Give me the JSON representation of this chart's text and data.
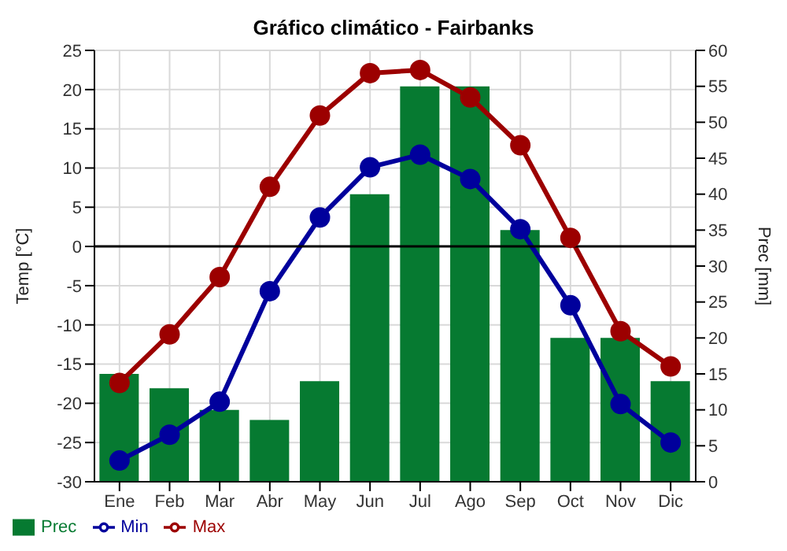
{
  "chart_data": {
    "type": "bar",
    "title": "Gráfico climático - Fairbanks",
    "ylabel": "Temp [°C]",
    "y2label": "Prec [mm]",
    "categories": [
      "Ene",
      "Feb",
      "Mar",
      "Abr",
      "May",
      "Jun",
      "Jul",
      "Ago",
      "Sep",
      "Oct",
      "Nov",
      "Dic"
    ],
    "series": [
      {
        "name": "Prec",
        "axis": "y2",
        "color": "#067a31",
        "values": [
          15,
          13,
          10,
          8.6,
          14,
          40,
          55,
          55,
          35,
          20,
          20,
          14
        ]
      },
      {
        "name": "Min",
        "type": "line",
        "color": "#00009c",
        "values": [
          -27.3,
          -24,
          -19.8,
          -5.7,
          3.7,
          10.1,
          11.7,
          8.6,
          2.2,
          -7.5,
          -20.1,
          -25
        ]
      },
      {
        "name": "Max",
        "type": "line",
        "color": "#9c0000",
        "values": [
          -17.4,
          -11.2,
          -3.9,
          7.6,
          16.7,
          22.1,
          22.5,
          19,
          12.9,
          1.1,
          -10.8,
          -15.3
        ]
      }
    ],
    "ylim": [
      -30,
      25
    ],
    "yticks": [
      -30,
      -25,
      -20,
      -15,
      -10,
      -5,
      0,
      5,
      10,
      15,
      20,
      25
    ],
    "y2lim": [
      0,
      60
    ],
    "y2ticks": [
      0,
      5,
      10,
      15,
      20,
      25,
      30,
      35,
      40,
      45,
      50,
      55,
      60
    ],
    "ref_lines": [
      {
        "axis": "y",
        "value": 0,
        "color": "#000000"
      }
    ],
    "grid": true,
    "legend": "bottom",
    "marker": "circle",
    "line_style": "solid"
  }
}
